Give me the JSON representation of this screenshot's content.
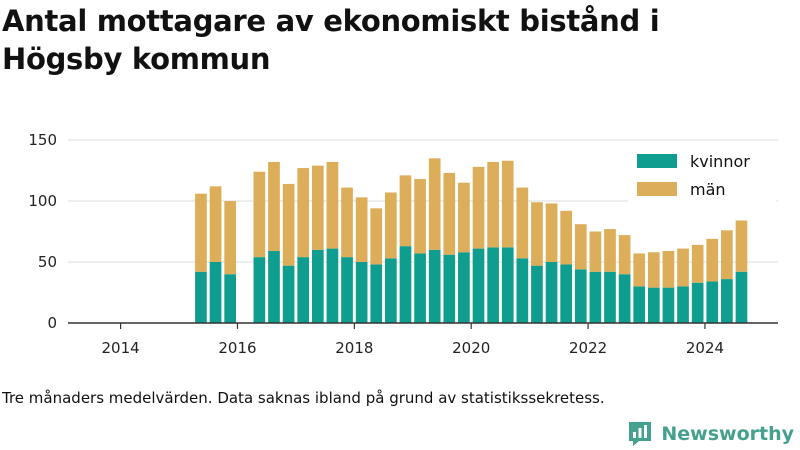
{
  "title": "Antal mottagare av ekonomiskt bistånd i Högsby kommun",
  "note": "Tre månaders medelvärden. Data saknas ibland på grund av statistikssekretess.",
  "brand": {
    "name": "Newsworthy",
    "color": "#45a08e",
    "icon": "newsworthy-logo-icon"
  },
  "colors": {
    "kvinnor": "#0f9d8f",
    "man": "#dcae5a",
    "axis": "#333333",
    "grid": "#dddddd"
  },
  "chart_data": {
    "type": "bar",
    "stacked": true,
    "x_unit": "year",
    "xlim": [
      2013.1,
      2025.25
    ],
    "ylim": [
      0,
      150
    ],
    "yticks": [
      0,
      50,
      100,
      150
    ],
    "xticks": [
      2014,
      2016,
      2018,
      2020,
      2022,
      2024
    ],
    "grid": {
      "y": true,
      "x": false
    },
    "legend_position": "top-right",
    "x": [
      2015.375,
      2015.625,
      2015.875,
      2016.375,
      2016.625,
      2016.875,
      2017.125,
      2017.375,
      2017.625,
      2017.875,
      2018.125,
      2018.375,
      2018.625,
      2018.875,
      2019.125,
      2019.375,
      2019.625,
      2019.875,
      2020.125,
      2020.375,
      2020.625,
      2020.875,
      2021.125,
      2021.375,
      2021.625,
      2021.875,
      2022.125,
      2022.375,
      2022.625,
      2022.875,
      2023.125,
      2023.375,
      2023.625,
      2023.875,
      2024.125,
      2024.375,
      2024.625
    ],
    "series": [
      {
        "name": "kvinnor",
        "values": [
          42,
          50,
          40,
          54,
          59,
          47,
          54,
          60,
          61,
          54,
          50,
          48,
          53,
          63,
          57,
          60,
          56,
          58,
          61,
          62,
          62,
          53,
          47,
          50,
          48,
          44,
          42,
          42,
          40,
          30,
          29,
          29,
          30,
          33,
          34,
          36,
          42
        ]
      },
      {
        "name": "män",
        "values": [
          64,
          62,
          60,
          70,
          73,
          67,
          73,
          69,
          71,
          57,
          53,
          46,
          54,
          58,
          61,
          75,
          67,
          57,
          67,
          70,
          71,
          58,
          52,
          48,
          44,
          37,
          33,
          35,
          32,
          27,
          29,
          30,
          31,
          31,
          35,
          40,
          42
        ]
      }
    ]
  }
}
